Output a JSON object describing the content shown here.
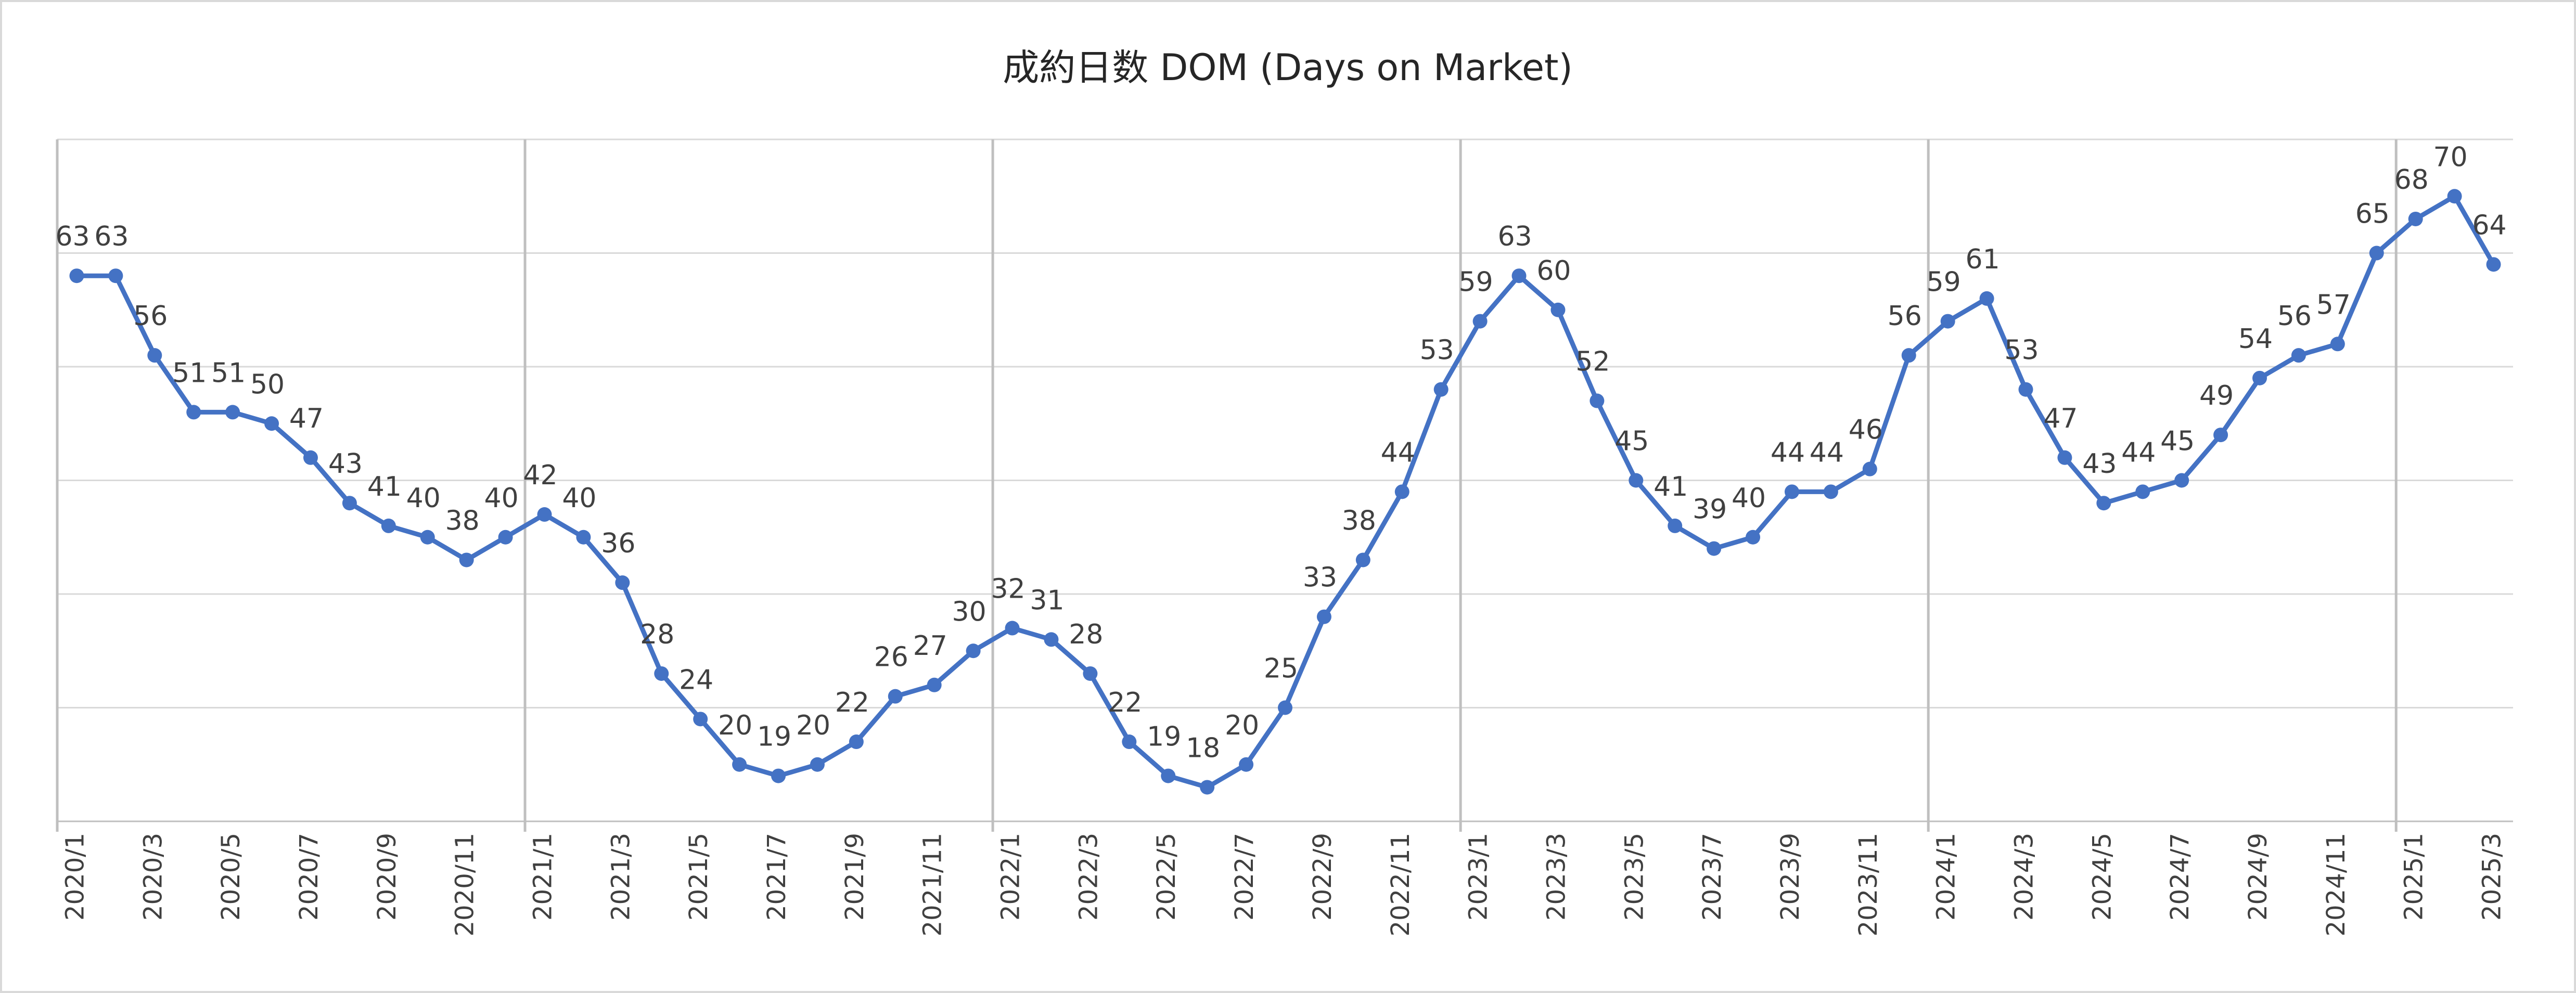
{
  "chart_data": {
    "type": "line",
    "title": "成約日数 DOM (Days on Market)",
    "categories": [
      "2020/1",
      null,
      "2020/3",
      null,
      "2020/5",
      null,
      "2020/7",
      null,
      "2020/9",
      null,
      "2020/11",
      null,
      "2021/1",
      null,
      "2021/3",
      null,
      "2021/5",
      null,
      "2021/7",
      null,
      "2021/9",
      null,
      "2021/11",
      null,
      "2022/1",
      null,
      "2022/3",
      null,
      "2022/5",
      null,
      "2022/7",
      null,
      "2022/9",
      null,
      "2022/11",
      null,
      "2023/1",
      null,
      "2023/3",
      null,
      "2023/5",
      null,
      "2023/7",
      null,
      "2023/9",
      null,
      "2023/11",
      null,
      "2024/1",
      null,
      "2024/3",
      null,
      "2024/5",
      null,
      "2024/7",
      null,
      "2024/9",
      null,
      "2024/11",
      null,
      "2025/1",
      null,
      "2025/3"
    ],
    "series": [
      {
        "name": "DOM",
        "color": "#4472c4",
        "values": [
          63,
          63,
          56,
          51,
          51,
          50,
          47,
          43,
          41,
          40,
          38,
          40,
          42,
          40,
          36,
          28,
          24,
          20,
          19,
          20,
          22,
          26,
          27,
          30,
          32,
          31,
          28,
          22,
          19,
          18,
          20,
          25,
          33,
          38,
          44,
          53,
          59,
          63,
          60,
          52,
          45,
          41,
          39,
          40,
          44,
          44,
          46,
          56,
          59,
          61,
          53,
          47,
          43,
          44,
          45,
          49,
          54,
          56,
          57,
          65,
          68,
          70,
          64
        ]
      }
    ],
    "ylim": [
      15,
      75
    ],
    "yticks": [
      15,
      25,
      35,
      45,
      55,
      65,
      75
    ],
    "grid": true
  }
}
